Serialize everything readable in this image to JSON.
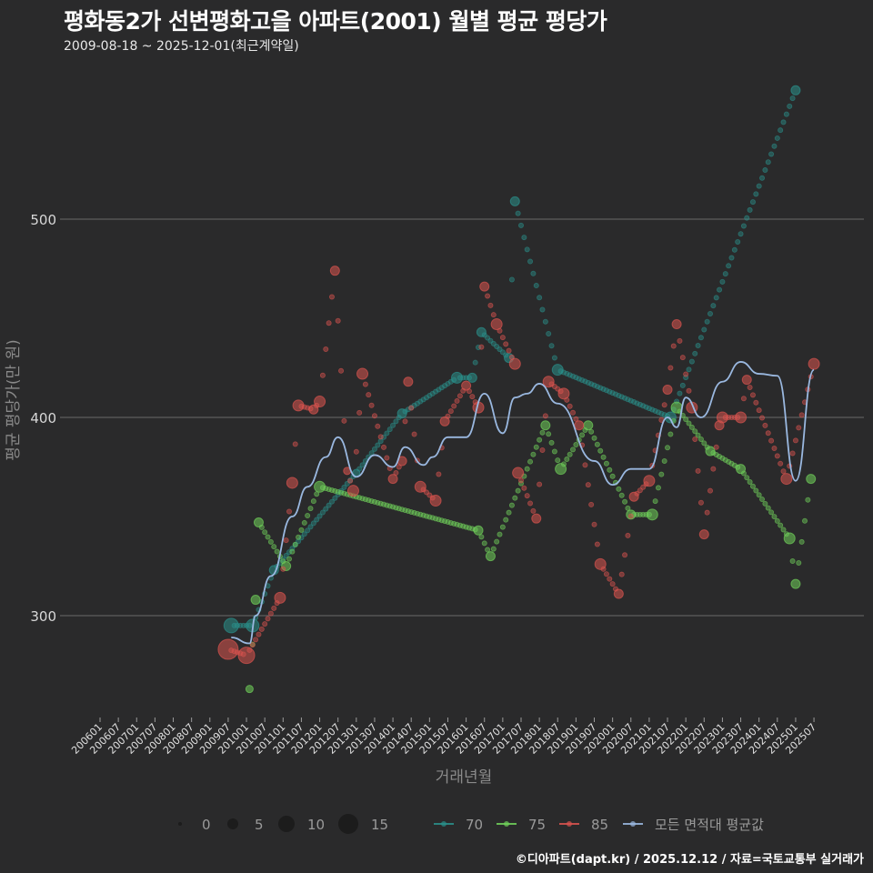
{
  "header": {
    "title": "평화동2가 선변평화고을 아파트(2001) 월별 평균 평당가",
    "subtitle": "2009-08-18 ~ 2025-12-01(최근계약일)"
  },
  "footer": {
    "credit": "©디아파트(dapt.kr) / 2025.12.12 / 자료=국토교통부 실거래가"
  },
  "chart_data": {
    "type": "line",
    "title": "평화동2가 선변평화고을 아파트(2001) 월별 평균 평당가",
    "subtitle": "2009-08-18 ~ 2025-12-01(최근계약일)",
    "xlabel": "거래년월",
    "ylabel": "평균 평당가(만 원)",
    "ylim": [
      250,
      570
    ],
    "yticks": [
      300,
      400,
      500
    ],
    "grid": true,
    "x_ticks": [
      "200601",
      "200607",
      "200701",
      "200707",
      "200801",
      "200807",
      "200901",
      "200907",
      "201001",
      "201007",
      "201101",
      "201107",
      "201201",
      "201207",
      "201301",
      "201307",
      "201401",
      "201407",
      "201501",
      "201507",
      "201601",
      "201607",
      "201701",
      "201707",
      "201801",
      "201807",
      "201901",
      "201907",
      "202001",
      "202007",
      "202101",
      "202107",
      "202201",
      "202207",
      "202301",
      "202307",
      "202401",
      "202407",
      "202501",
      "202507"
    ],
    "size_legend": {
      "title": "",
      "values": [
        0,
        5,
        10,
        15
      ]
    },
    "legend": [
      {
        "name": "70",
        "color": "#2a8f8a"
      },
      {
        "name": "75",
        "color": "#6fcf5a"
      },
      {
        "name": "85",
        "color": "#d9534f"
      },
      {
        "name": "모든 면적대 평균값",
        "color": "#9ab8e0"
      }
    ],
    "colors": {
      "s70": "#2a8f8a",
      "s75": "#6fcf5a",
      "s85": "#d9534f",
      "avg": "#9ab8e0",
      "grid": "#6a6a6a",
      "bg": "#2a2a2b"
    },
    "series": [
      {
        "name": "70",
        "points": [
          [
            "200908",
            295,
            6
          ],
          [
            "201003",
            295,
            5
          ],
          [
            "201010",
            323,
            3
          ],
          [
            "201301",
            372,
            2
          ],
          [
            "201404",
            402,
            3
          ],
          [
            "201510",
            420,
            4
          ],
          [
            "201603",
            420,
            3
          ],
          [
            "201606",
            443,
            3
          ],
          [
            "201703",
            430,
            3
          ],
          [
            "201705",
            509,
            3
          ],
          [
            "201807",
            424,
            4
          ],
          [
            "202108",
            400,
            4
          ],
          [
            "202501",
            565,
            3
          ]
        ]
      },
      {
        "name": "75",
        "points": [
          [
            "201002",
            263,
            2
          ],
          [
            "201004",
            308,
            3
          ],
          [
            "201005",
            347,
            3
          ],
          [
            "201102",
            325,
            3
          ],
          [
            "201201",
            365,
            4
          ],
          [
            "201605",
            343,
            3
          ],
          [
            "201609",
            330,
            3
          ],
          [
            "201803",
            396,
            3
          ],
          [
            "201808",
            374,
            4
          ],
          [
            "201905",
            396,
            3
          ],
          [
            "202007",
            351,
            3
          ],
          [
            "202102",
            351,
            4
          ],
          [
            "202110",
            405,
            4
          ],
          [
            "202209",
            383,
            3
          ],
          [
            "202307",
            374,
            3
          ],
          [
            "202411",
            339,
            4
          ],
          [
            "202501",
            316,
            3
          ],
          [
            "202506",
            369,
            3
          ]
        ]
      },
      {
        "name": "85",
        "points": [
          [
            "200907",
            283,
            9
          ],
          [
            "201001",
            280,
            7
          ],
          [
            "201012",
            309,
            4
          ],
          [
            "201104",
            367,
            4
          ],
          [
            "201106",
            406,
            4
          ],
          [
            "201111",
            404,
            3
          ],
          [
            "201201",
            408,
            4
          ],
          [
            "201206",
            474,
            3
          ],
          [
            "201210",
            373,
            2
          ],
          [
            "201212",
            363,
            4
          ],
          [
            "201303",
            422,
            4
          ],
          [
            "201401",
            369,
            3
          ],
          [
            "201404",
            378,
            3
          ],
          [
            "201406",
            418,
            3
          ],
          [
            "201410",
            365,
            4
          ],
          [
            "201503",
            358,
            4
          ],
          [
            "201506",
            398,
            3
          ],
          [
            "201601",
            416,
            3
          ],
          [
            "201605",
            405,
            4
          ],
          [
            "201607",
            466,
            3
          ],
          [
            "201611",
            447,
            4
          ],
          [
            "201705",
            427,
            4
          ],
          [
            "201706",
            372,
            4
          ],
          [
            "201712",
            349,
            3
          ],
          [
            "201804",
            418,
            4
          ],
          [
            "201809",
            412,
            4
          ],
          [
            "201902",
            396,
            3
          ],
          [
            "201909",
            326,
            4
          ],
          [
            "202003",
            311,
            3
          ],
          [
            "202008",
            360,
            3
          ],
          [
            "202101",
            368,
            4
          ],
          [
            "202107",
            414,
            3
          ],
          [
            "202110",
            447,
            3
          ],
          [
            "202203",
            405,
            4
          ],
          [
            "202207",
            341,
            3
          ],
          [
            "202212",
            396,
            3
          ],
          [
            "202301",
            400,
            4
          ],
          [
            "202307",
            400,
            4
          ],
          [
            "202309",
            419,
            3
          ],
          [
            "202410",
            369,
            4
          ],
          [
            "202507",
            427,
            4
          ]
        ]
      },
      {
        "name": "모든 면적대 평균값",
        "points": [
          [
            "200908",
            289
          ],
          [
            "201002",
            286
          ],
          [
            "201004",
            300
          ],
          [
            "201009",
            320
          ],
          [
            "201104",
            350
          ],
          [
            "201109",
            365
          ],
          [
            "201203",
            380
          ],
          [
            "201207",
            390
          ],
          [
            "201301",
            370
          ],
          [
            "201307",
            381
          ],
          [
            "201401",
            375
          ],
          [
            "201405",
            385
          ],
          [
            "201411",
            376
          ],
          [
            "201502",
            380
          ],
          [
            "201507",
            390
          ],
          [
            "201601",
            390
          ],
          [
            "201607",
            412
          ],
          [
            "201701",
            392
          ],
          [
            "201705",
            410
          ],
          [
            "201709",
            412
          ],
          [
            "201801",
            417
          ],
          [
            "201807",
            407
          ],
          [
            "201907",
            378
          ],
          [
            "202001",
            366
          ],
          [
            "202007",
            374
          ],
          [
            "202101",
            374
          ],
          [
            "202107",
            400
          ],
          [
            "202110",
            395
          ],
          [
            "202201",
            410
          ],
          [
            "202206",
            400
          ],
          [
            "202301",
            418
          ],
          [
            "202307",
            428
          ],
          [
            "202401",
            422
          ],
          [
            "202407",
            421
          ],
          [
            "202501",
            368
          ],
          [
            "202507",
            424
          ]
        ]
      }
    ]
  }
}
